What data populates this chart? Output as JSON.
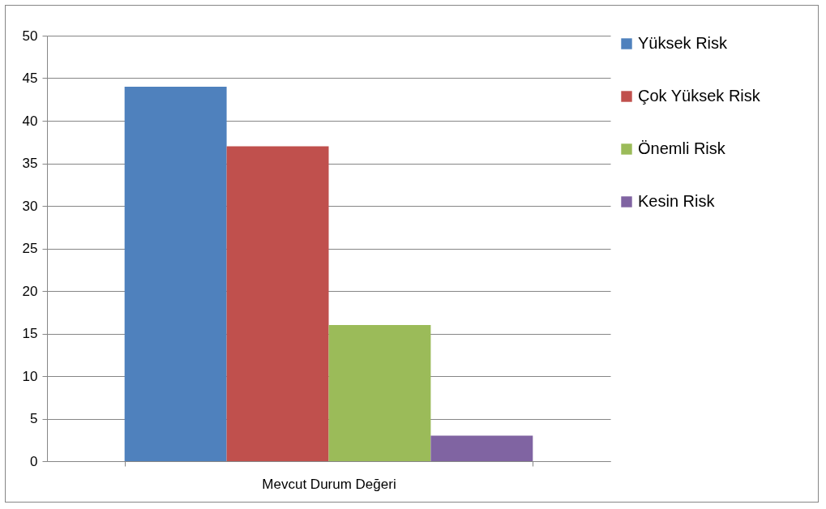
{
  "chart_data": {
    "type": "bar",
    "categories": [
      "Mevcut Durum Değeri"
    ],
    "series": [
      {
        "name": "Yüksek Risk",
        "color": "#4f81bd",
        "values": [
          44
        ]
      },
      {
        "name": "Çok Yüksek Risk",
        "color": "#c0504d",
        "values": [
          37
        ]
      },
      {
        "name": "Önemli Risk",
        "color": "#9bbb59",
        "values": [
          16
        ]
      },
      {
        "name": "Kesin Risk",
        "color": "#8064a2",
        "values": [
          3
        ]
      }
    ],
    "ylim": [
      0,
      50
    ],
    "yticks": [
      0,
      5,
      10,
      15,
      20,
      25,
      30,
      35,
      40,
      45,
      50
    ],
    "grid": "y",
    "legend": "right"
  }
}
